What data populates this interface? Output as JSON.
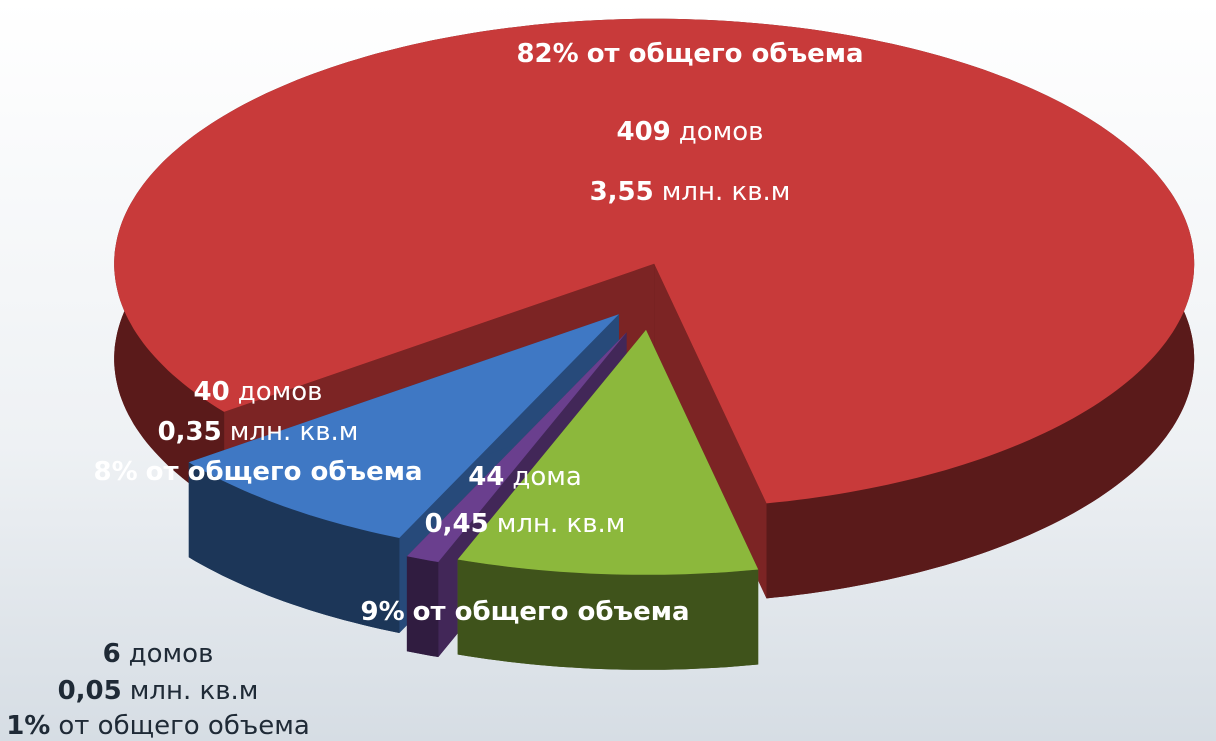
{
  "chart_data": {
    "type": "pie",
    "values": [
      82,
      8,
      1,
      9
    ],
    "value_labels": [
      "82%",
      "8%",
      "1%",
      "9%"
    ],
    "colors": [
      "#c83a3a",
      "#3f78c4",
      "#6a3f8e",
      "#8cb83c"
    ],
    "houses": [
      409,
      40,
      6,
      44
    ],
    "house_words": [
      "домов",
      "домов",
      "домов",
      "дома"
    ],
    "area_labels": [
      "3,55",
      "0,35",
      "0,05",
      "0,45"
    ],
    "area_unit": "млн. кв.м",
    "share_text": "от общего объема"
  }
}
